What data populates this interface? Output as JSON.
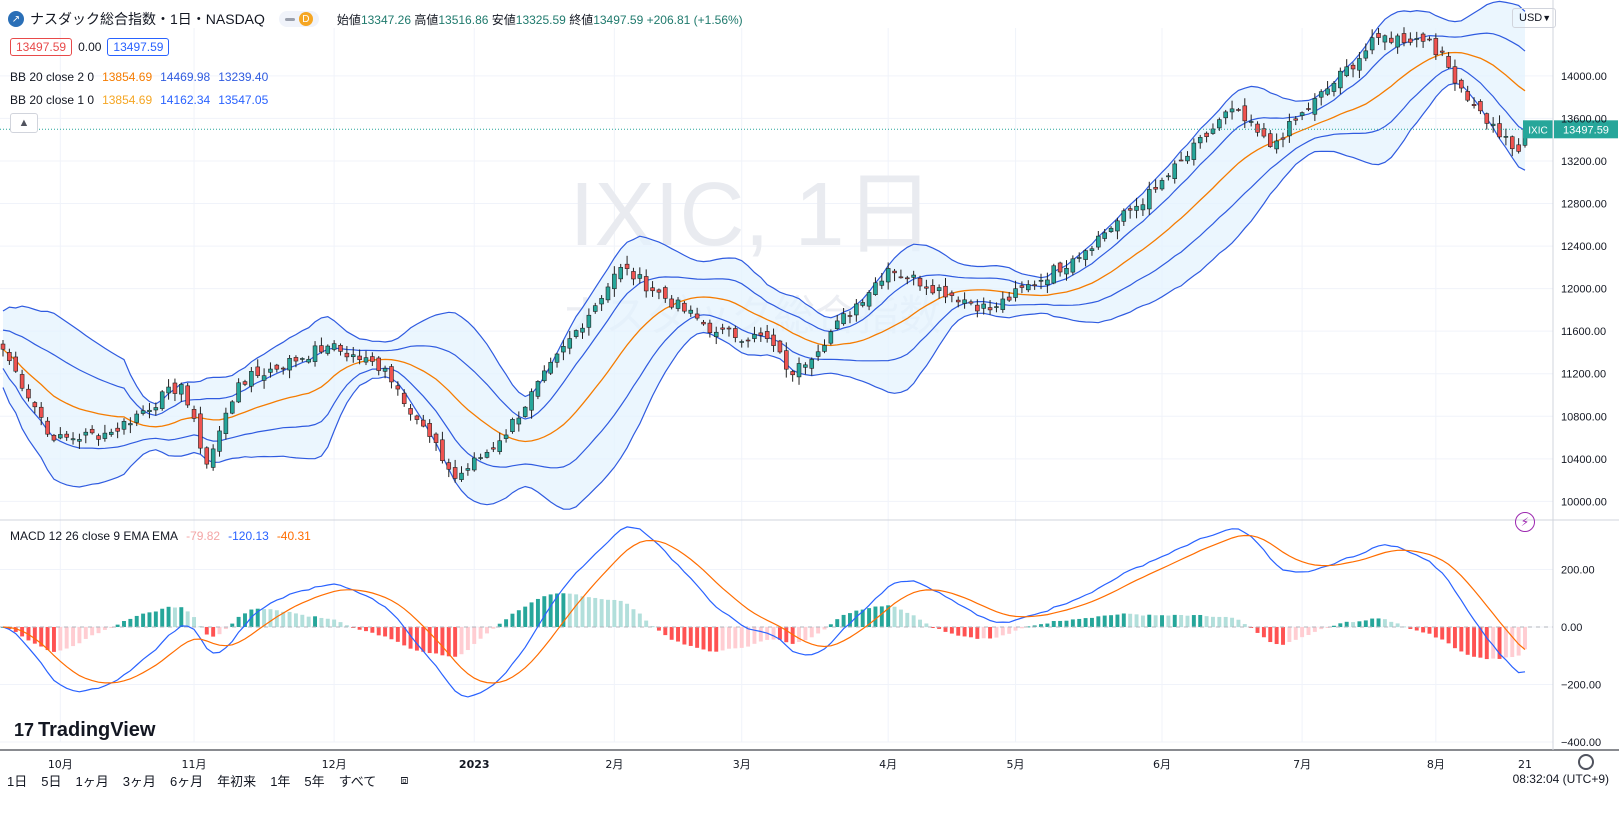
{
  "header": {
    "title": "ナスダック総合指数・1日・NASDAQ",
    "interval_badge": "D",
    "ohlc": {
      "open_label": "始値",
      "open": "13347.26",
      "high_label": "高値",
      "high": "13516.86",
      "low_label": "安値",
      "low": "13325.59",
      "close_label": "終値",
      "close": "13497.59",
      "change": "+206.81 (+1.56%)"
    },
    "price_red": "13497.59",
    "spread": "0.00",
    "price_blue": "13497.59",
    "currency": "USD"
  },
  "legend": {
    "bb2_label": "BB 20 close 2 0",
    "bb2_basis": "13854.69",
    "bb2_upper": "14469.98",
    "bb2_lower": "13239.40",
    "bb1_label": "BB 20 close 1 0",
    "bb1_basis": "13854.69",
    "bb1_upper": "14162.34",
    "bb1_lower": "13547.05",
    "macd_label": "MACD 12 26 close 9 EMA EMA",
    "macd_hist": "-79.82",
    "macd_line": "-120.13",
    "macd_signal": "-40.31"
  },
  "watermark": {
    "line1": "IXIC, 1日",
    "line2": "ナスダック総合指数"
  },
  "last_price_tag": {
    "symbol": "IXIC",
    "price": "13497.59"
  },
  "bottom": {
    "timeframes": [
      "1日",
      "5日",
      "1ヶ月",
      "3ヶ月",
      "6ヶ月",
      "年初来",
      "1年",
      "5年",
      "すべて"
    ],
    "clock": "08:32:04 (UTC+9)",
    "brand": "TradingView"
  },
  "colors": {
    "up": "#26a69a",
    "down": "#ef5350",
    "bb_outer": "#2f5be0",
    "bb_basis": "#f57c00",
    "macd": "#2962ff",
    "signal": "#ff6d00",
    "bb_fill": "#e3f2fd"
  },
  "chart_data": [
    {
      "type": "candlestick",
      "title": "IXIC, 1日",
      "y_ticks": [
        10000,
        10400,
        10800,
        11200,
        11600,
        12000,
        12400,
        12800,
        13200,
        13600,
        14000
      ],
      "ylim": [
        9900,
        14450
      ],
      "x_tick_labels": [
        "10月",
        "11月",
        "12月",
        "2023",
        "2月",
        "3月",
        "4月",
        "5月",
        "6月",
        "7月",
        "8月",
        "21"
      ],
      "overlays": [
        "BB 20 close 2 0",
        "BB 20 close 1 0"
      ],
      "anchor_points": [
        {
          "date": "2022-09-20",
          "close": 11430
        },
        {
          "date": "2022-09-30",
          "close": 10575
        },
        {
          "date": "2022-10-13",
          "close": 10650
        },
        {
          "date": "2022-10-28",
          "close": 11100
        },
        {
          "date": "2022-11-03",
          "close": 10350
        },
        {
          "date": "2022-11-10",
          "close": 11115
        },
        {
          "date": "2022-11-30",
          "close": 11460
        },
        {
          "date": "2022-12-13",
          "close": 11250
        },
        {
          "date": "2022-12-28",
          "close": 10215
        },
        {
          "date": "2023-01-06",
          "close": 10570
        },
        {
          "date": "2023-02-02",
          "close": 12200
        },
        {
          "date": "2023-02-23",
          "close": 11590
        },
        {
          "date": "2023-03-07",
          "close": 11530
        },
        {
          "date": "2023-03-13",
          "close": 11190
        },
        {
          "date": "2023-04-03",
          "close": 12190
        },
        {
          "date": "2023-04-25",
          "close": 11800
        },
        {
          "date": "2023-05-12",
          "close": 12280
        },
        {
          "date": "2023-05-31",
          "close": 12935
        },
        {
          "date": "2023-06-16",
          "close": 13690
        },
        {
          "date": "2023-06-26",
          "close": 13335
        },
        {
          "date": "2023-07-19",
          "close": 14360
        },
        {
          "date": "2023-07-31",
          "close": 14345
        },
        {
          "date": "2023-08-09",
          "close": 13720
        },
        {
          "date": "2023-08-17",
          "close": 13315
        },
        {
          "date": "2023-08-18",
          "close": 13290
        },
        {
          "date": "2023-08-21",
          "close": 13497.59
        }
      ]
    },
    {
      "type": "macd",
      "title": "MACD 12 26 close 9 EMA EMA",
      "y_ticks": [
        -400,
        -200,
        0,
        200
      ],
      "ylim": [
        -400,
        320
      ]
    }
  ]
}
